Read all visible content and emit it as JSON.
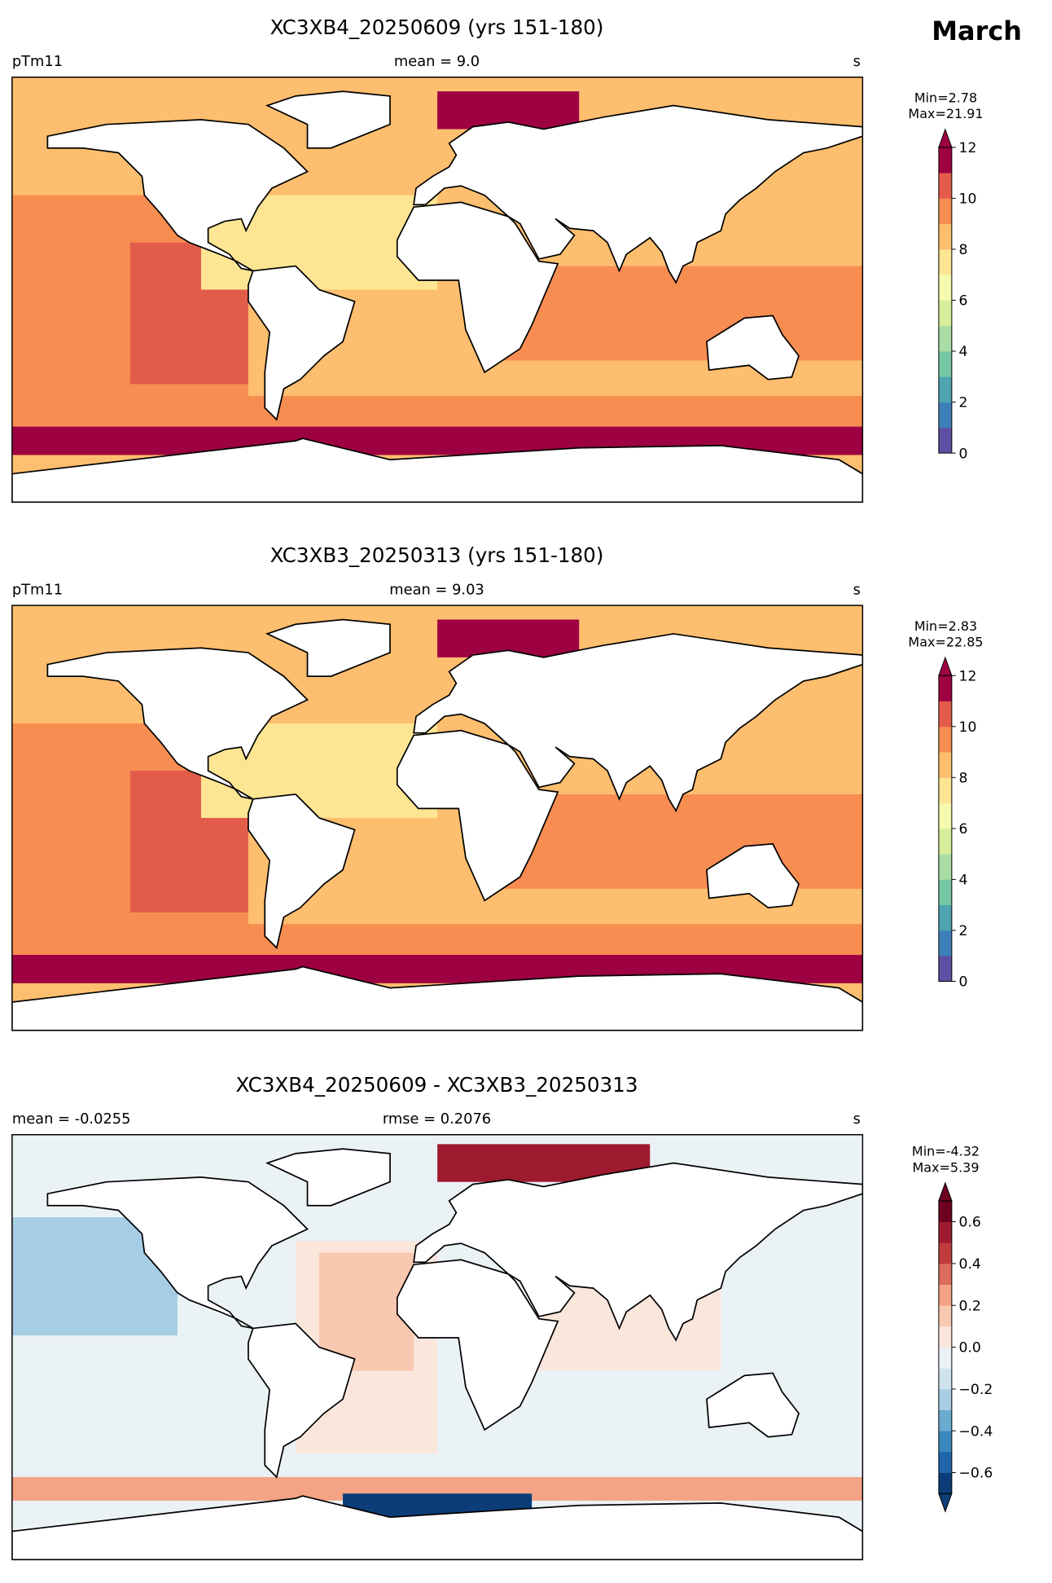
{
  "title": "March",
  "panels": [
    {
      "title": "XC3XB4_20250609 (yrs 151-180)",
      "left": "pTm11",
      "center": "mean = 9.0",
      "right": "s",
      "min_text": "Min=2.78",
      "max_text": "Max=21.91",
      "colorbar": {
        "ylim": [
          0,
          12
        ],
        "yticks": [
          0,
          2,
          4,
          6,
          8,
          10,
          12
        ],
        "colors": [
          "#5e4fa2",
          "#3f7fb9",
          "#4ea5b0",
          "#76c8a4",
          "#a9dca4",
          "#d6ee9b",
          "#f5faae",
          "#fee593",
          "#fdbe6f",
          "#f88d52",
          "#e35c49",
          "#9e0142"
        ]
      }
    },
    {
      "title": "XC3XB3_20250313 (yrs 151-180)",
      "left": "pTm11",
      "center": "mean = 9.03",
      "right": "s",
      "min_text": "Min=2.83",
      "max_text": "Max=22.85",
      "colorbar": {
        "ylim": [
          0,
          12
        ],
        "yticks": [
          0,
          2,
          4,
          6,
          8,
          10,
          12
        ],
        "colors": [
          "#5e4fa2",
          "#3f7fb9",
          "#4ea5b0",
          "#76c8a4",
          "#a9dca4",
          "#d6ee9b",
          "#f5faae",
          "#fee593",
          "#fdbe6f",
          "#f88d52",
          "#e35c49",
          "#9e0142"
        ]
      }
    },
    {
      "title": "XC3XB4_20250609 - XC3XB3_20250313",
      "left": "mean = -0.0255",
      "center": "rmse = 0.2076",
      "right": "s",
      "min_text": "Min=-4.32",
      "max_text": "Max=5.39",
      "colorbar": {
        "ylim": [
          -0.7,
          0.7
        ],
        "yticks": [
          {
            "value": -0.6,
            "label": "−0.6"
          },
          {
            "value": -0.4,
            "label": "−0.4"
          },
          {
            "value": -0.2,
            "label": "−0.2"
          },
          {
            "value": 0,
            "label": "0.0"
          },
          0.2,
          0.4,
          0.6
        ],
        "colors": [
          "#0c3d78",
          "#2166ac",
          "#3a88bf",
          "#6aabd0",
          "#a6cde3",
          "#cfe3ef",
          "#ebf2f6",
          "#fbe6dc",
          "#f9c8b0",
          "#f4a385",
          "#db6b5b",
          "#c13b3c",
          "#9e1b2f",
          "#6d0021"
        ]
      }
    }
  ]
}
